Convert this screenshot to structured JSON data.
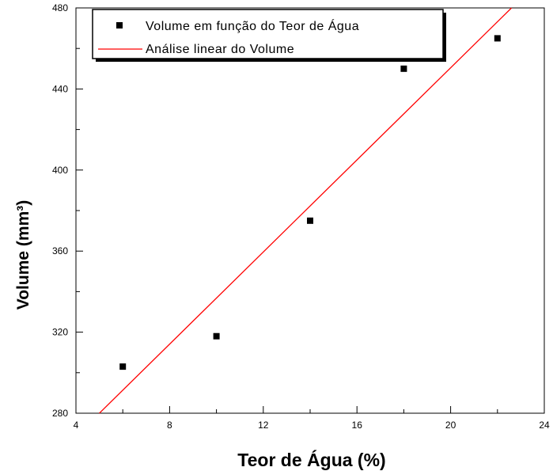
{
  "chart_data": {
    "type": "scatter",
    "xlabel": "Teor de Água (%)",
    "ylabel": "Volume (mm³)",
    "xlim": [
      4,
      24
    ],
    "ylim": [
      280,
      480
    ],
    "xticks": [
      "4",
      "8",
      "12",
      "16",
      "20",
      "24"
    ],
    "yticks": [
      "280",
      "320",
      "360",
      "400",
      "440",
      "480"
    ],
    "grid": false,
    "legend_position": "top",
    "series": [
      {
        "name": "Volume em função do Teor de Água",
        "type": "scatter",
        "color": "#000000",
        "x": [
          6,
          10,
          14,
          18,
          22
        ],
        "y": [
          303,
          318,
          375,
          450,
          465
        ]
      },
      {
        "name": "Análise linear do Volume",
        "type": "line",
        "color": "#ff0000",
        "x": [
          5,
          22.6
        ],
        "y": [
          280,
          480
        ]
      }
    ]
  }
}
